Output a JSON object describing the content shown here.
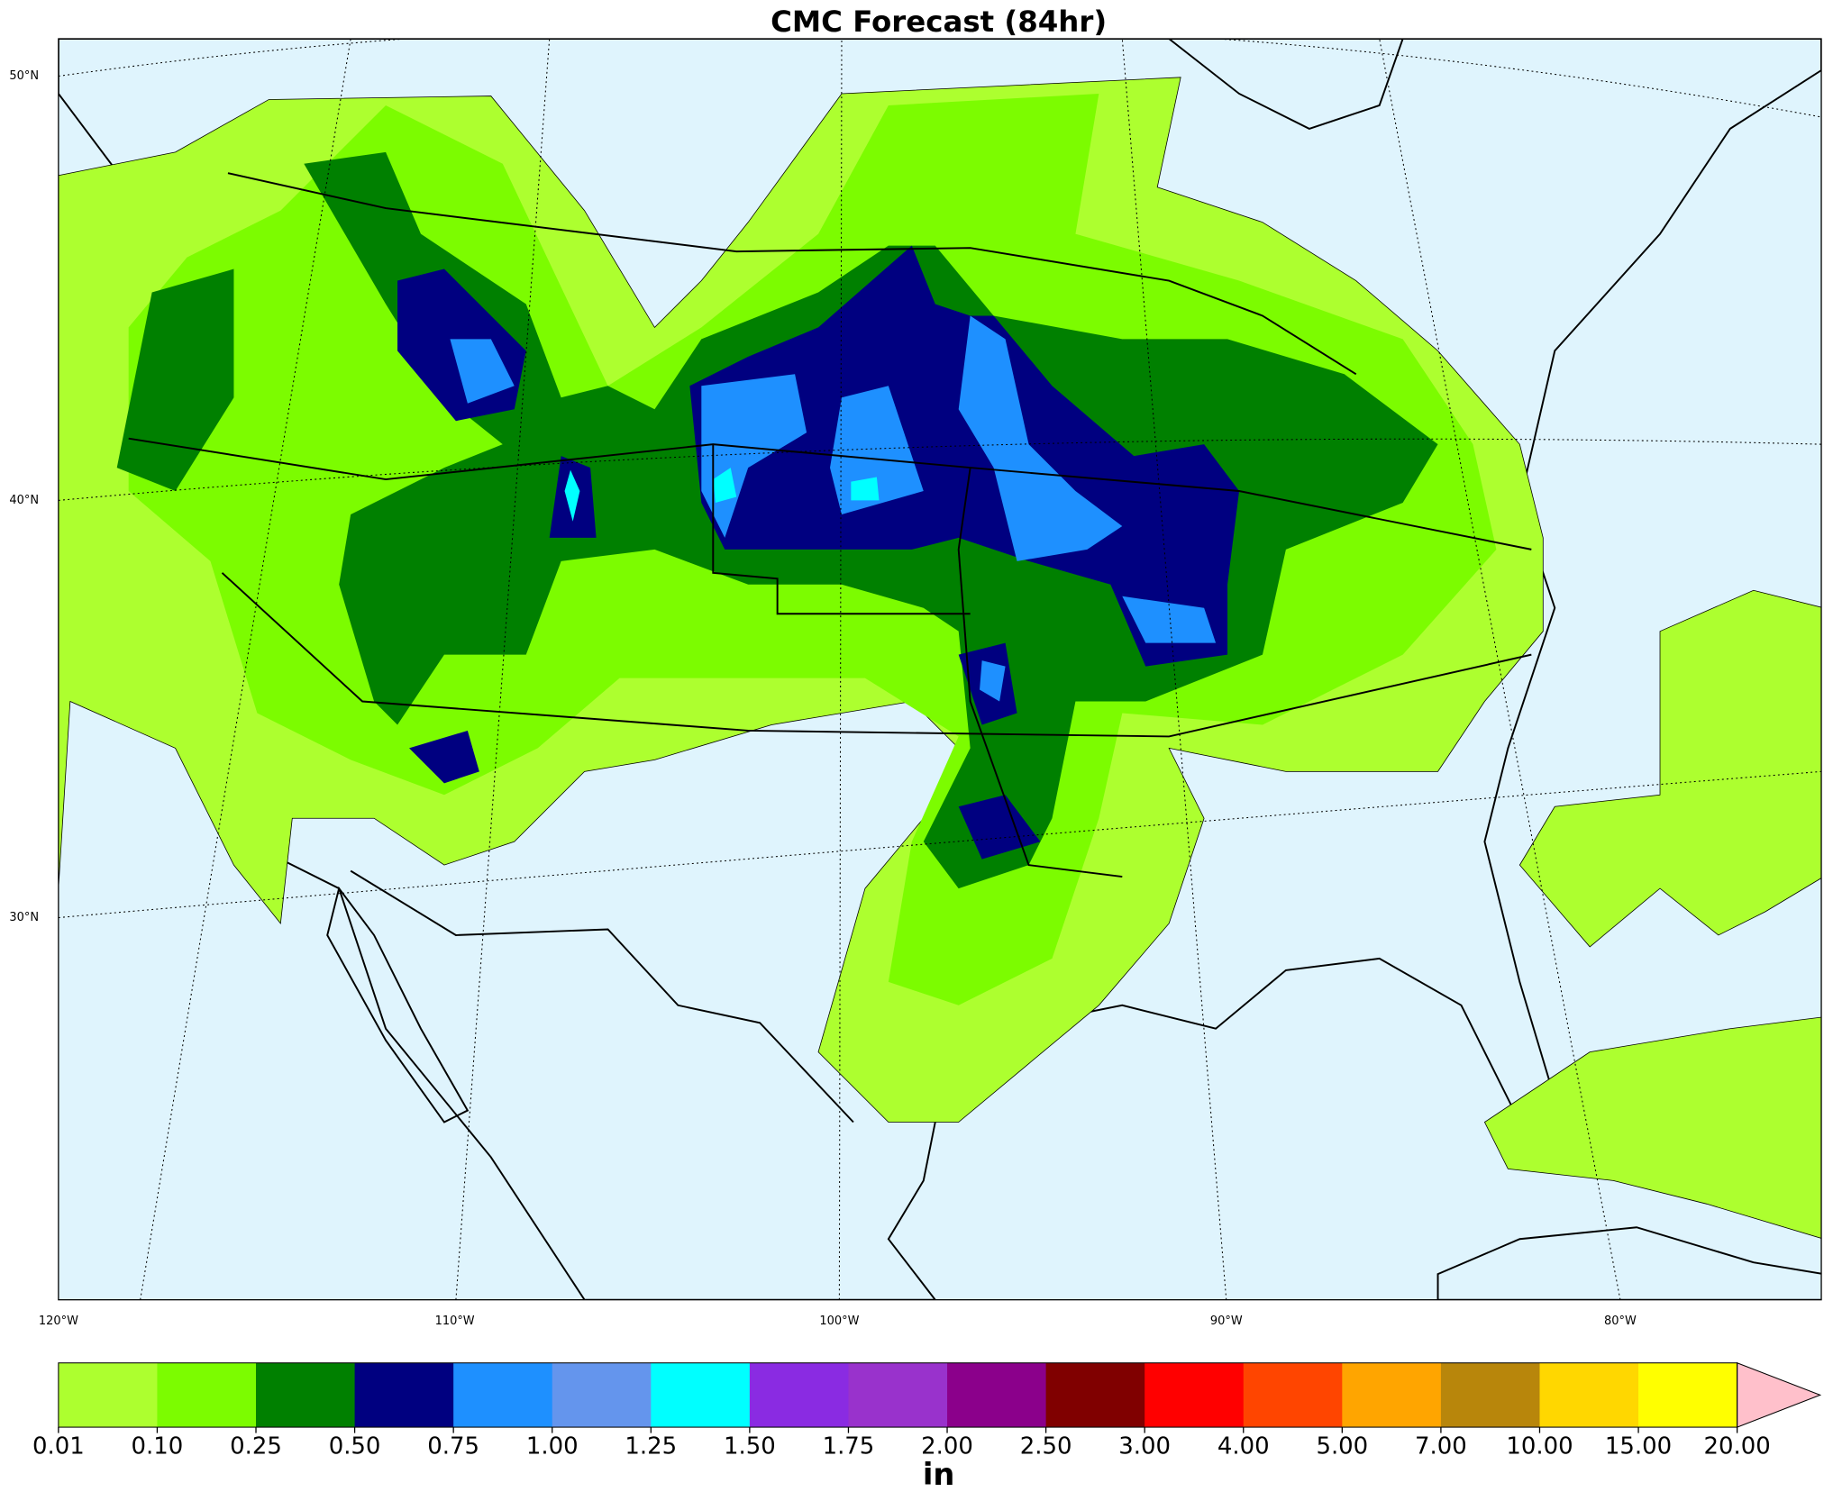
{
  "title": "CMC Forecast (84hr)",
  "map": {
    "lat_labels": [
      "50°N",
      "40°N",
      "30°N"
    ],
    "lon_labels": [
      "120°W",
      "110°W",
      "100°W",
      "90°W",
      "80°W"
    ]
  },
  "colorbar": {
    "label": "in",
    "boundaries": [
      {
        "value": 0.01,
        "label": "0.01"
      },
      {
        "value": 0.1,
        "label": "0.10"
      },
      {
        "value": 0.25,
        "label": "0.25"
      },
      {
        "value": 0.5,
        "label": "0.50"
      },
      {
        "value": 0.75,
        "label": "0.75"
      },
      {
        "value": 1,
        "label": "1.00"
      },
      {
        "value": 1.25,
        "label": "1.25"
      },
      {
        "value": 1.5,
        "label": "1.50"
      },
      {
        "value": 1.75,
        "label": "1.75"
      },
      {
        "value": 2,
        "label": "2.00"
      },
      {
        "value": 2.5,
        "label": "2.50"
      },
      {
        "value": 3,
        "label": "3.00"
      },
      {
        "value": 4,
        "label": "4.00"
      },
      {
        "value": 5,
        "label": "5.00"
      },
      {
        "value": 7,
        "label": "7.00"
      },
      {
        "value": 10,
        "label": "10.00"
      },
      {
        "value": 15,
        "label": "15.00"
      },
      {
        "value": 20,
        "label": "20.00"
      }
    ],
    "colors": [
      "#adff2f",
      "#7cfc00",
      "#008000",
      "#000080",
      "#1e90ff",
      "#6495ed",
      "#00ffff",
      "#8a2be2",
      "#9932cc",
      "#8b008b",
      "#800000",
      "#ff0000",
      "#ff4500",
      "#ffa500",
      "#b8860b",
      "#ffd700",
      "#ffff00"
    ],
    "extend_color": "#ffc0cb"
  }
}
